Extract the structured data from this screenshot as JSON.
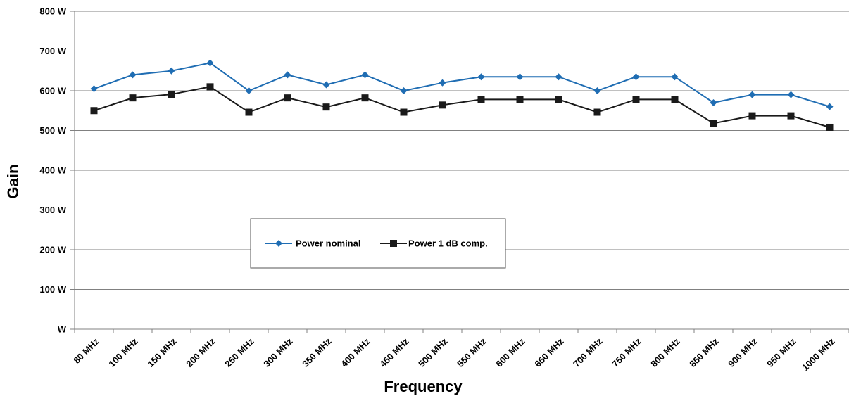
{
  "chart_data": {
    "type": "line",
    "xlabel": "Frequency",
    "ylabel": "Gain",
    "categories": [
      "80 MHz",
      "100 MHz",
      "150 MHz",
      "200 MHz",
      "250 MHz",
      "300 MHz",
      "350 MHz",
      "400 MHz",
      "450 MHz",
      "500 MHz",
      "550 MHz",
      "600 MHz",
      "650 MHz",
      "700 MHz",
      "750 MHz",
      "800 MHz",
      "850 MHz",
      "900 MHz",
      "950 MHz",
      "1000 MHz"
    ],
    "y_ticks": [
      "W",
      "100 W",
      "200 W",
      "300 W",
      "400 W",
      "500 W",
      "600 W",
      "700 W",
      "800 W"
    ],
    "ylim": [
      0,
      800
    ],
    "grid": "horizontal",
    "legend_position": "center",
    "series": [
      {
        "name": "Power nominal",
        "color": "#1f6db3",
        "marker": "diamond",
        "values": [
          605,
          640,
          650,
          670,
          600,
          640,
          615,
          640,
          600,
          620,
          635,
          635,
          635,
          600,
          635,
          635,
          570,
          590,
          590,
          560
        ]
      },
      {
        "name": "Power 1 dB comp.",
        "color": "#1a1a1a",
        "marker": "square",
        "values": [
          550,
          582,
          591,
          610,
          546,
          582,
          559,
          582,
          546,
          564,
          578,
          578,
          578,
          546,
          578,
          578,
          518,
          537,
          537,
          508
        ]
      }
    ]
  }
}
